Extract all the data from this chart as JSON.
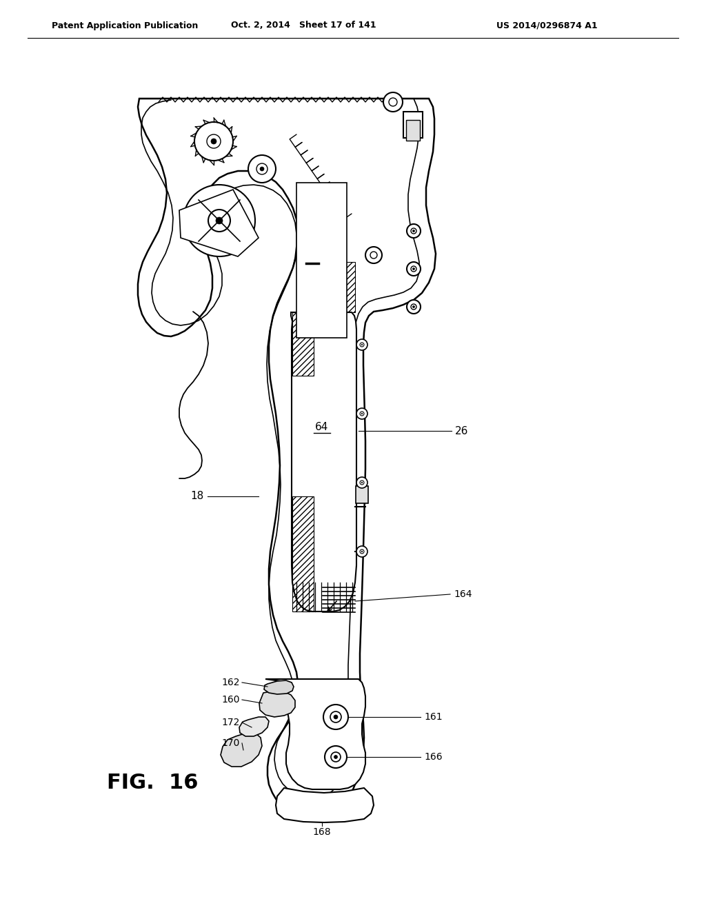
{
  "header_left": "Patent Application Publication",
  "header_center": "Oct. 2, 2014   Sheet 17 of 141",
  "header_right": "US 2014/0296874 A1",
  "fig_label": "FIG.  16",
  "bg_color": "#ffffff",
  "line_color": "#000000",
  "label_fontsize": 11,
  "header_fontsize": 9,
  "fig_label_fontsize": 22
}
